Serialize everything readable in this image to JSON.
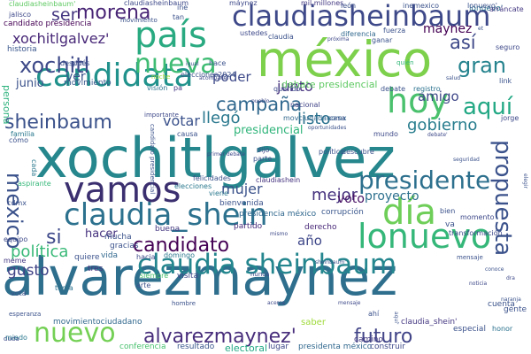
{
  "words": [
    {
      "id": "w1",
      "text": "alvarezmaynez",
      "color": "#2f6f8e"
    },
    {
      "id": "w2",
      "text": "xochitlgalvez",
      "color": "#26878d"
    },
    {
      "id": "w3",
      "text": "méxico",
      "color": "#7dd04b"
    },
    {
      "id": "w4",
      "text": "claudiasheinbaum",
      "color": "#3e4989"
    },
    {
      "id": "w5",
      "text": "candidata",
      "color": "#21928c"
    },
    {
      "id": "w6",
      "text": "país",
      "color": "#2aaa81"
    },
    {
      "id": "w7",
      "text": "vamos",
      "color": "#3b2f6f"
    },
    {
      "id": "w8",
      "text": "claudia_shein",
      "color": "#2c718e"
    },
    {
      "id": "w9",
      "text": "claudia sheinbaum",
      "color": "#24868e"
    },
    {
      "id": "w10",
      "text": "lonuevo",
      "color": "#35b779"
    },
    {
      "id": "w11",
      "text": "día",
      "color": "#6ece58"
    },
    {
      "id": "w12",
      "text": "hoy",
      "color": "#4ac16d"
    },
    {
      "id": "w13",
      "text": "nuevo",
      "color": "#74d055"
    },
    {
      "id": "w14",
      "text": "nueva",
      "color": "#3fbc73"
    },
    {
      "id": "w15",
      "text": "presidente",
      "color": "#2d708e"
    },
    {
      "id": "w16",
      "text": "propuesta",
      "color": "#3b528b"
    },
    {
      "id": "w17",
      "text": "xochitl",
      "color": "#3e4a89"
    },
    {
      "id": "w18",
      "text": "morena",
      "color": "#482475"
    },
    {
      "id": "w19",
      "text": "sheinbaum",
      "color": "#3b528b"
    },
    {
      "id": "w20",
      "text": "candidato",
      "color": "#440154"
    },
    {
      "id": "w21",
      "text": "alvarezmaynez'",
      "color": "#472d7b"
    },
    {
      "id": "w22",
      "text": "futuro",
      "color": "#414487"
    },
    {
      "id": "w23",
      "text": "mexico",
      "color": "#3b528b"
    },
    {
      "id": "w24",
      "text": "aquí",
      "color": "#22a884"
    },
    {
      "id": "w25",
      "text": "gran",
      "color": "#25838e"
    },
    {
      "id": "w26",
      "text": "campaña",
      "color": "#31688e"
    },
    {
      "id": "w27",
      "text": "xochitlgalvez'",
      "color": "#482878"
    },
    {
      "id": "w28",
      "text": "ser",
      "color": "#453781"
    },
    {
      "id": "w29",
      "text": "así",
      "color": "#3e4989"
    },
    {
      "id": "w30",
      "text": "si",
      "color": "#3e4989"
    },
    {
      "id": "w31",
      "text": "mujer",
      "color": "#3b528b"
    },
    {
      "id": "w32",
      "text": "mejor",
      "color": "#46327e"
    },
    {
      "id": "w33",
      "text": "votar",
      "color": "#3b528b"
    },
    {
      "id": "w34",
      "text": "llegó",
      "color": "#2a788e"
    },
    {
      "id": "w35",
      "text": "listo",
      "color": "#2c728e"
    },
    {
      "id": "w36",
      "text": "gobierno",
      "color": "#287d8e"
    },
    {
      "id": "w37",
      "text": "proyecto",
      "color": "#2d708e"
    },
    {
      "id": "w38",
      "text": "junto",
      "color": "#46337f"
    },
    {
      "id": "w39",
      "text": "amigo",
      "color": "#3f4788"
    },
    {
      "id": "w40",
      "text": "voto",
      "color": "#471063"
    },
    {
      "id": "w41",
      "text": "año",
      "color": "#3f4889"
    },
    {
      "id": "w42",
      "text": "política",
      "color": "#38b977"
    },
    {
      "id": "w43",
      "text": "hacer",
      "color": "#46327e"
    },
    {
      "id": "w44",
      "text": "gusto",
      "color": "#414487"
    },
    {
      "id": "w45",
      "text": "poder",
      "color": "#3e4a89"
    },
    {
      "id": "w46",
      "text": "ver",
      "color": "#3a548c"
    },
    {
      "id": "w47",
      "text": "junio",
      "color": "#3b528b"
    },
    {
      "id": "w48",
      "text": "maynez",
      "color": "#440154"
    },
    {
      "id": "w49",
      "text": "presidencial",
      "color": "#31b57b"
    },
    {
      "id": "w50",
      "text": "debate presidencial",
      "color": "#5ec962"
    },
    {
      "id": "w51",
      "text": "persona",
      "color": "#2db27d"
    },
    {
      "id": "w52",
      "text": "historia",
      "color": "#39568c"
    },
    {
      "id": "w53",
      "text": "candidato presidencia",
      "color": "#440154"
    },
    {
      "id": "w54",
      "text": "lonuevo'",
      "color": "#2c738e"
    },
    {
      "id": "w55",
      "text": "elecciones2024",
      "color": "#3b528b"
    },
    {
      "id": "w56",
      "text": "claudiasheinbaum'",
      "color": "#5ec962"
    },
    {
      "id": "w57",
      "text": "mil millones",
      "color": "#443983"
    },
    {
      "id": "w58",
      "text": "movimientociudadano",
      "color": "#31688e"
    },
    {
      "id": "w59",
      "text": "conferencia",
      "color": "#48c16e"
    },
    {
      "id": "w60",
      "text": "resultado",
      "color": "#39568c"
    },
    {
      "id": "w61",
      "text": "electoral",
      "color": "#22a884"
    },
    {
      "id": "w62",
      "text": "lugar",
      "color": "#3f4889"
    },
    {
      "id": "w63",
      "text": "presidenta méxico",
      "color": "#31688e"
    },
    {
      "id": "w64",
      "text": "construir",
      "color": "#3e4989"
    },
    {
      "id": "w65",
      "text": "claudia_shein'",
      "color": "#453882"
    },
    {
      "id": "w66",
      "text": "especial",
      "color": "#3b528b"
    },
    {
      "id": "w67",
      "text": "honor",
      "color": "#2c728e"
    },
    {
      "id": "w68",
      "text": "camino",
      "color": "#443a83"
    },
    {
      "id": "w69",
      "text": "saber",
      "color": "#9fda3a"
    },
    {
      "id": "w70",
      "text": "movimiento",
      "color": "#39568c"
    },
    {
      "id": "w71",
      "text": "elecciones",
      "color": "#2a788e"
    },
    {
      "id": "w72",
      "text": "felicidades",
      "color": "#3b528b"
    },
    {
      "id": "w73",
      "text": "claudiashein",
      "color": "#46337f"
    },
    {
      "id": "w74",
      "text": "bienvenida",
      "color": "#3b528b"
    },
    {
      "id": "w75",
      "text": "presidencia méxico",
      "color": "#31688e"
    },
    {
      "id": "w76",
      "text": "corrupción",
      "color": "#39568c"
    },
    {
      "id": "w77",
      "text": "derecho",
      "color": "#482878"
    },
    {
      "id": "w78",
      "text": "partido",
      "color": "#472d7b"
    },
    {
      "id": "w79",
      "text": "buena",
      "color": "#453781"
    },
    {
      "id": "w80",
      "text": "mucha",
      "color": "#3b528b"
    },
    {
      "id": "w81",
      "text": "gracias",
      "color": "#3b528b"
    },
    {
      "id": "w82",
      "text": "vida",
      "color": "#31688e"
    },
    {
      "id": "w83",
      "text": "tres",
      "color": "#46327e"
    },
    {
      "id": "w84",
      "text": "quiere",
      "color": "#3b528b"
    },
    {
      "id": "w85",
      "text": "hacia",
      "color": "#3e4a89"
    },
    {
      "id": "w86",
      "text": "domingo",
      "color": "#2a788e"
    },
    {
      "id": "w87",
      "text": "siempre",
      "color": "#4ac16d"
    },
    {
      "id": "w88",
      "text": "visita",
      "color": "#3e4989"
    },
    {
      "id": "w89",
      "text": "arte",
      "color": "#3b528b"
    },
    {
      "id": "w90",
      "text": "tema",
      "color": "#2c728e"
    },
    {
      "id": "w91",
      "text": "vota",
      "color": "#3b528b"
    },
    {
      "id": "w92",
      "text": "meme",
      "color": "#443983"
    },
    {
      "id": "w93",
      "text": "equipo",
      "color": "#3e4989"
    },
    {
      "id": "w94",
      "text": "aspirante",
      "color": "#35b779"
    },
    {
      "id": "w95",
      "text": "cada",
      "color": "#2a788e"
    },
    {
      "id": "w96",
      "text": "cómo",
      "color": "#3b528b"
    },
    {
      "id": "w97",
      "text": "jalisco",
      "color": "#3e4989"
    },
    {
      "id": "w98",
      "text": "nacional",
      "color": "#414487"
    },
    {
      "id": "w99",
      "text": "debate",
      "color": "#3b528b"
    },
    {
      "id": "w100",
      "text": "registro",
      "color": "#2c728e"
    },
    {
      "id": "w101",
      "text": "link",
      "color": "#3b528b"
    },
    {
      "id": "w102",
      "text": "querido",
      "color": "#3e4989"
    },
    {
      "id": "w103",
      "text": "movciudadanomx",
      "color": "#31688e"
    },
    {
      "id": "w104",
      "text": "casa",
      "color": "#3b528b"
    },
    {
      "id": "w105",
      "text": "mundo",
      "color": "#3e4a89"
    },
    {
      "id": "w106",
      "text": "pa",
      "color": "#443983"
    },
    {
      "id": "w107",
      "text": "visión",
      "color": "#2c728e"
    },
    {
      "id": "w108",
      "text": "causa",
      "color": "#3b528b"
    },
    {
      "id": "w109",
      "text": "ustedes",
      "color": "#3e4989"
    },
    {
      "id": "w110",
      "text": "claudia",
      "color": "#3b528b"
    },
    {
      "id": "w111",
      "text": "diferencia",
      "color": "#31688e"
    },
    {
      "id": "w112",
      "text": "próxima",
      "color": "#3e4989"
    },
    {
      "id": "w113",
      "text": "ganar",
      "color": "#3b528b"
    },
    {
      "id": "w114",
      "text": "fuerza",
      "color": "#3b528b"
    },
    {
      "id": "w115",
      "text": "seguro",
      "color": "#3e4989"
    },
    {
      "id": "w116",
      "text": "inemexico",
      "color": "#3b528b"
    },
    {
      "id": "w117",
      "text": "león",
      "color": "#3b528b"
    },
    {
      "id": "w118",
      "text": "lonuevo'",
      "color": "#3b528b"
    },
    {
      "id": "w119",
      "text": "arráncate",
      "color": "#443983"
    },
    {
      "id": "w120",
      "text": "tan",
      "color": "#3b528b"
    },
    {
      "id": "w121",
      "text": "claudiasheinbaum",
      "color": "#3e4989"
    },
    {
      "id": "w122",
      "text": "xóchitlgálvez",
      "color": "#3b528b"
    },
    {
      "id": "w123",
      "text": "ine",
      "color": "#3b528b"
    },
    {
      "id": "w124",
      "text": "máynez",
      "color": "#3e4989"
    },
    {
      "id": "w125",
      "text": "hace",
      "color": "#3b528b"
    },
    {
      "id": "w126",
      "text": "noche",
      "color": "#9fda3a"
    },
    {
      "id": "w127",
      "text": "quién",
      "color": "#35b779"
    },
    {
      "id": "w128",
      "text": "jorge",
      "color": "#3e4989"
    },
    {
      "id": "w129",
      "text": "cuenta",
      "color": "#3b528b"
    },
    {
      "id": "w130",
      "text": "gente",
      "color": "#3b528b"
    },
    {
      "id": "w131",
      "text": "momento",
      "color": "#3e4989"
    },
    {
      "id": "w132",
      "text": "bien",
      "color": "#3b528b"
    },
    {
      "id": "w133",
      "text": "va",
      "color": "#3b528b"
    },
    {
      "id": "w134",
      "text": "transformación",
      "color": "#3e4989"
    },
    {
      "id": "w135",
      "text": "mensaje",
      "color": "#3b528b"
    },
    {
      "id": "w136",
      "text": "duda",
      "color": "#3e4989"
    },
    {
      "id": "w137",
      "text": "miedo",
      "color": "#2a788e"
    },
    {
      "id": "w138",
      "text": "esperanza",
      "color": "#3b528b"
    },
    {
      "id": "w139",
      "text": "pide",
      "color": "#3e4989"
    },
    {
      "id": "w140",
      "text": "después",
      "color": "#3b528b"
    },
    {
      "id": "w141",
      "text": "nunca",
      "color": "#3e4989"
    },
    {
      "id": "w142",
      "text": "ahí",
      "color": "#3b528b"
    },
    {
      "id": "w143",
      "text": "cdmx",
      "color": "#3b528b"
    },
    {
      "id": "w144",
      "text": "viene",
      "color": "#2a788e"
    },
    {
      "id": "w145",
      "text": "parte",
      "color": "#3b528b"
    },
    {
      "id": "w146",
      "text": "dijo",
      "color": "#3e4989"
    },
    {
      "id": "w147",
      "text": "político",
      "color": "#3b528b"
    },
    {
      "id": "w148",
      "text": "descubre",
      "color": "#3b528b"
    },
    {
      "id": "w149",
      "text": "primer debate",
      "color": "#3e4989"
    },
    {
      "id": "w150",
      "text": "candidato presidencial",
      "color": "#3b528b"
    },
    {
      "id": "w151",
      "text": "familia",
      "color": "#2a788e"
    },
    {
      "id": "w152",
      "text": "hombre",
      "color": "#3b528b"
    },
    {
      "id": "w153",
      "text": "mismo",
      "color": "#3e4989"
    },
    {
      "id": "w154",
      "text": "movimiento",
      "color": "#3b528b"
    },
    {
      "id": "w155",
      "text": "acompañe",
      "color": "#3e4989"
    },
    {
      "id": "w156",
      "text": "salud",
      "color": "#3b528b"
    },
    {
      "id": "w157",
      "text": "pueblo",
      "color": "#3e4989"
    },
    {
      "id": "w158",
      "text": "igual",
      "color": "#3b528b"
    },
    {
      "id": "w159",
      "text": "oportunidades",
      "color": "#3b528b"
    },
    {
      "id": "w160",
      "text": "debate'",
      "color": "#3e4989"
    },
    {
      "id": "w161",
      "text": "seguridad",
      "color": "#3b528b"
    },
    {
      "id": "w162",
      "text": "noticia",
      "color": "#3e4989"
    },
    {
      "id": "w163",
      "text": "elegir",
      "color": "#3b528b"
    },
    {
      "id": "w164",
      "text": "dra",
      "color": "#3e4989"
    },
    {
      "id": "w165",
      "text": "conoce",
      "color": "#3b528b"
    },
    {
      "id": "w166",
      "text": "naranja",
      "color": "#3b528b"
    },
    {
      "id": "w167",
      "text": "aquí'",
      "color": "#3b528b"
    },
    {
      "id": "w168",
      "text": "mensaje",
      "color": "#3e4989"
    },
    {
      "id": "w169",
      "text": "sheinbaum'",
      "color": "#3b528b"
    },
    {
      "id": "w170",
      "text": "acerca",
      "color": "#3e4989"
    },
    {
      "id": "w171",
      "text": "et",
      "color": "#3b528b"
    },
    {
      "id": "w172",
      "text": "importante",
      "color": "#3e4989"
    }
  ]
}
